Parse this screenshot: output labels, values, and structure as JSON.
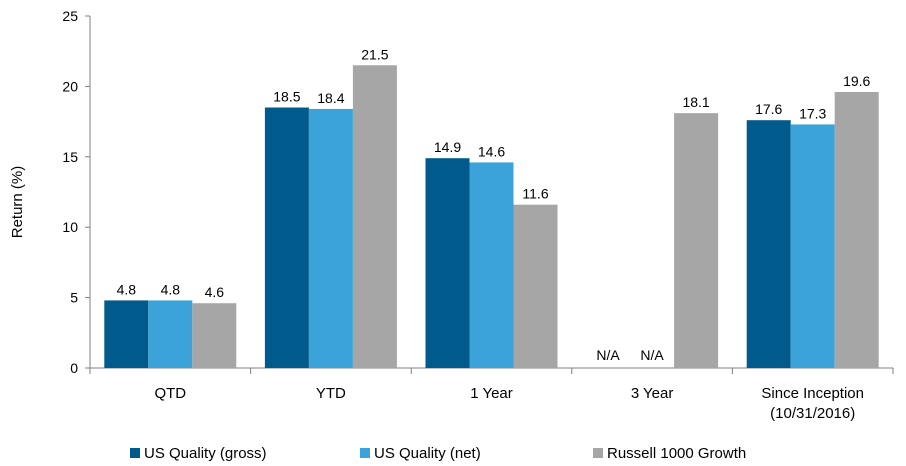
{
  "chart_data": {
    "type": "bar",
    "title": "",
    "xlabel": "",
    "ylabel": "Return (%)",
    "ylim": [
      0,
      25
    ],
    "yticks": [
      0,
      5,
      10,
      15,
      20,
      25
    ],
    "grid": false,
    "legend_position": "bottom",
    "categories": [
      [
        "QTD"
      ],
      [
        "YTD"
      ],
      [
        "1 Year"
      ],
      [
        "3 Year"
      ],
      [
        "Since Inception",
        "(10/31/2016)"
      ]
    ],
    "series": [
      {
        "name": "US Quality (gross)",
        "color": "#005A8C",
        "values": [
          4.8,
          18.5,
          14.9,
          null,
          17.6
        ],
        "labels": [
          "4.8",
          "18.5",
          "14.9",
          "N/A",
          "17.6"
        ]
      },
      {
        "name": "US Quality (net)",
        "color": "#3BA3D9",
        "values": [
          4.8,
          18.4,
          14.6,
          null,
          17.3
        ],
        "labels": [
          "4.8",
          "18.4",
          "14.6",
          "N/A",
          "17.3"
        ]
      },
      {
        "name": "Russell 1000 Growth",
        "color": "#A6A6A6",
        "values": [
          4.6,
          21.5,
          11.6,
          18.1,
          19.6
        ],
        "labels": [
          "4.6",
          "21.5",
          "11.6",
          "18.1",
          "19.6"
        ]
      }
    ]
  }
}
